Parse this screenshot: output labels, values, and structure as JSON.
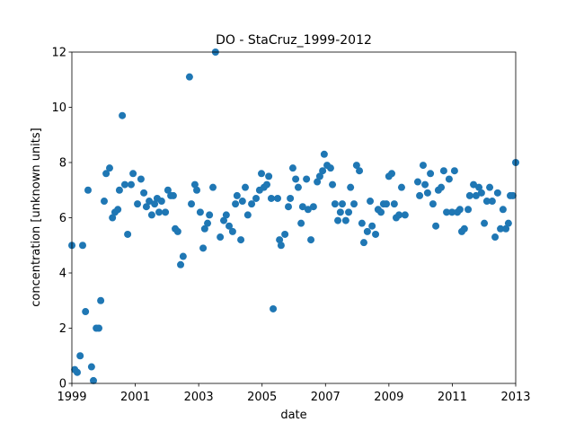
{
  "chart_data": {
    "type": "scatter",
    "title": "DO - StaCruz_1999-2012",
    "xlabel": "date",
    "ylabel": "concentration [unknown units]",
    "xlim": [
      1999,
      2013
    ],
    "ylim": [
      0,
      12
    ],
    "xticks": [
      1999,
      2001,
      2003,
      2005,
      2007,
      2009,
      2011,
      2013
    ],
    "yticks": [
      0,
      2,
      4,
      6,
      8,
      10,
      12
    ],
    "color": "#1f77b4",
    "x": [
      1999.0,
      1999.09,
      1999.17,
      1999.26,
      1999.34,
      1999.43,
      1999.51,
      1999.62,
      1999.68,
      1999.77,
      1999.85,
      1999.91,
      2000.02,
      2000.08,
      2000.19,
      2000.28,
      2000.36,
      2000.45,
      2000.5,
      2000.59,
      2000.67,
      2000.76,
      2000.87,
      2000.93,
      2001.07,
      2001.18,
      2001.27,
      2001.35,
      2001.44,
      2001.52,
      2001.61,
      2001.69,
      2001.75,
      2001.83,
      2001.95,
      2002.03,
      2002.12,
      2002.2,
      2002.26,
      2002.34,
      2002.43,
      2002.51,
      2002.71,
      2002.77,
      2002.88,
      2002.94,
      2003.05,
      2003.14,
      2003.19,
      2003.28,
      2003.34,
      2003.45,
      2003.53,
      2003.68,
      2003.79,
      2003.87,
      2003.96,
      2004.07,
      2004.16,
      2004.21,
      2004.33,
      2004.38,
      2004.47,
      2004.55,
      2004.67,
      2004.81,
      2004.92,
      2004.98,
      2005.06,
      2005.15,
      2005.21,
      2005.29,
      2005.35,
      2005.49,
      2005.55,
      2005.6,
      2005.72,
      2005.83,
      2005.89,
      2005.97,
      2006.06,
      2006.14,
      2006.23,
      2006.28,
      2006.4,
      2006.45,
      2006.54,
      2006.62,
      2006.74,
      2006.82,
      2006.91,
      2006.96,
      2007.05,
      2007.16,
      2007.22,
      2007.3,
      2007.39,
      2007.47,
      2007.53,
      2007.64,
      2007.73,
      2007.79,
      2007.9,
      2007.98,
      2008.07,
      2008.15,
      2008.21,
      2008.32,
      2008.41,
      2008.47,
      2008.58,
      2008.66,
      2008.75,
      2008.83,
      2008.92,
      2009.0,
      2009.09,
      2009.17,
      2009.23,
      2009.32,
      2009.4,
      2009.51,
      2009.91,
      2009.97,
      2010.08,
      2010.14,
      2010.22,
      2010.31,
      2010.39,
      2010.48,
      2010.56,
      2010.65,
      2010.73,
      2010.82,
      2010.9,
      2010.99,
      2011.07,
      2011.16,
      2011.24,
      2011.3,
      2011.38,
      2011.5,
      2011.55,
      2011.67,
      2011.75,
      2011.84,
      2011.92,
      2012.01,
      2012.09,
      2012.18,
      2012.26,
      2012.35,
      2012.43,
      2012.52,
      2012.6,
      2012.69,
      2012.77,
      2012.83,
      2012.91,
      2013.0
    ],
    "values": [
      5.0,
      0.5,
      0.4,
      1.0,
      5.0,
      2.6,
      7.0,
      0.6,
      0.1,
      2.0,
      2.0,
      3.0,
      6.6,
      7.6,
      7.8,
      6.0,
      6.2,
      6.3,
      7.0,
      9.7,
      7.2,
      5.4,
      7.2,
      7.6,
      6.5,
      7.4,
      6.9,
      6.4,
      6.6,
      6.1,
      6.5,
      6.7,
      6.2,
      6.6,
      6.2,
      7.0,
      6.8,
      6.8,
      5.6,
      5.5,
      4.3,
      4.6,
      11.1,
      6.5,
      7.2,
      7.0,
      6.2,
      4.9,
      5.6,
      5.8,
      6.1,
      7.1,
      12.0,
      5.3,
      5.9,
      6.1,
      5.7,
      5.5,
      6.5,
      6.8,
      5.2,
      6.6,
      7.1,
      6.1,
      6.5,
      6.7,
      7.0,
      7.6,
      7.1,
      7.2,
      7.5,
      6.7,
      2.7,
      6.7,
      5.2,
      5.0,
      5.4,
      6.4,
      6.7,
      7.8,
      7.4,
      7.1,
      5.8,
      6.4,
      7.4,
      6.3,
      5.2,
      6.4,
      7.3,
      7.5,
      7.7,
      8.3,
      7.9,
      7.8,
      7.2,
      6.5,
      5.9,
      6.2,
      6.5,
      5.9,
      6.2,
      7.1,
      6.5,
      7.9,
      7.7,
      5.8,
      5.1,
      5.5,
      6.6,
      5.7,
      5.4,
      6.3,
      6.2,
      6.5,
      6.5,
      7.5,
      7.6,
      6.5,
      6.0,
      6.1,
      7.1,
      6.1,
      7.3,
      6.8,
      7.9,
      7.2,
      6.9,
      7.6,
      6.5,
      5.7,
      7.0,
      7.1,
      7.7,
      6.2,
      7.4,
      6.2,
      7.7,
      6.2,
      6.3,
      5.5,
      5.6,
      6.3,
      6.8,
      7.2,
      6.8,
      7.1,
      6.9,
      5.8,
      6.6,
      7.1,
      6.6,
      5.3,
      6.9,
      5.6,
      6.3,
      5.6,
      5.8,
      6.8,
      6.8,
      8.0
    ]
  }
}
